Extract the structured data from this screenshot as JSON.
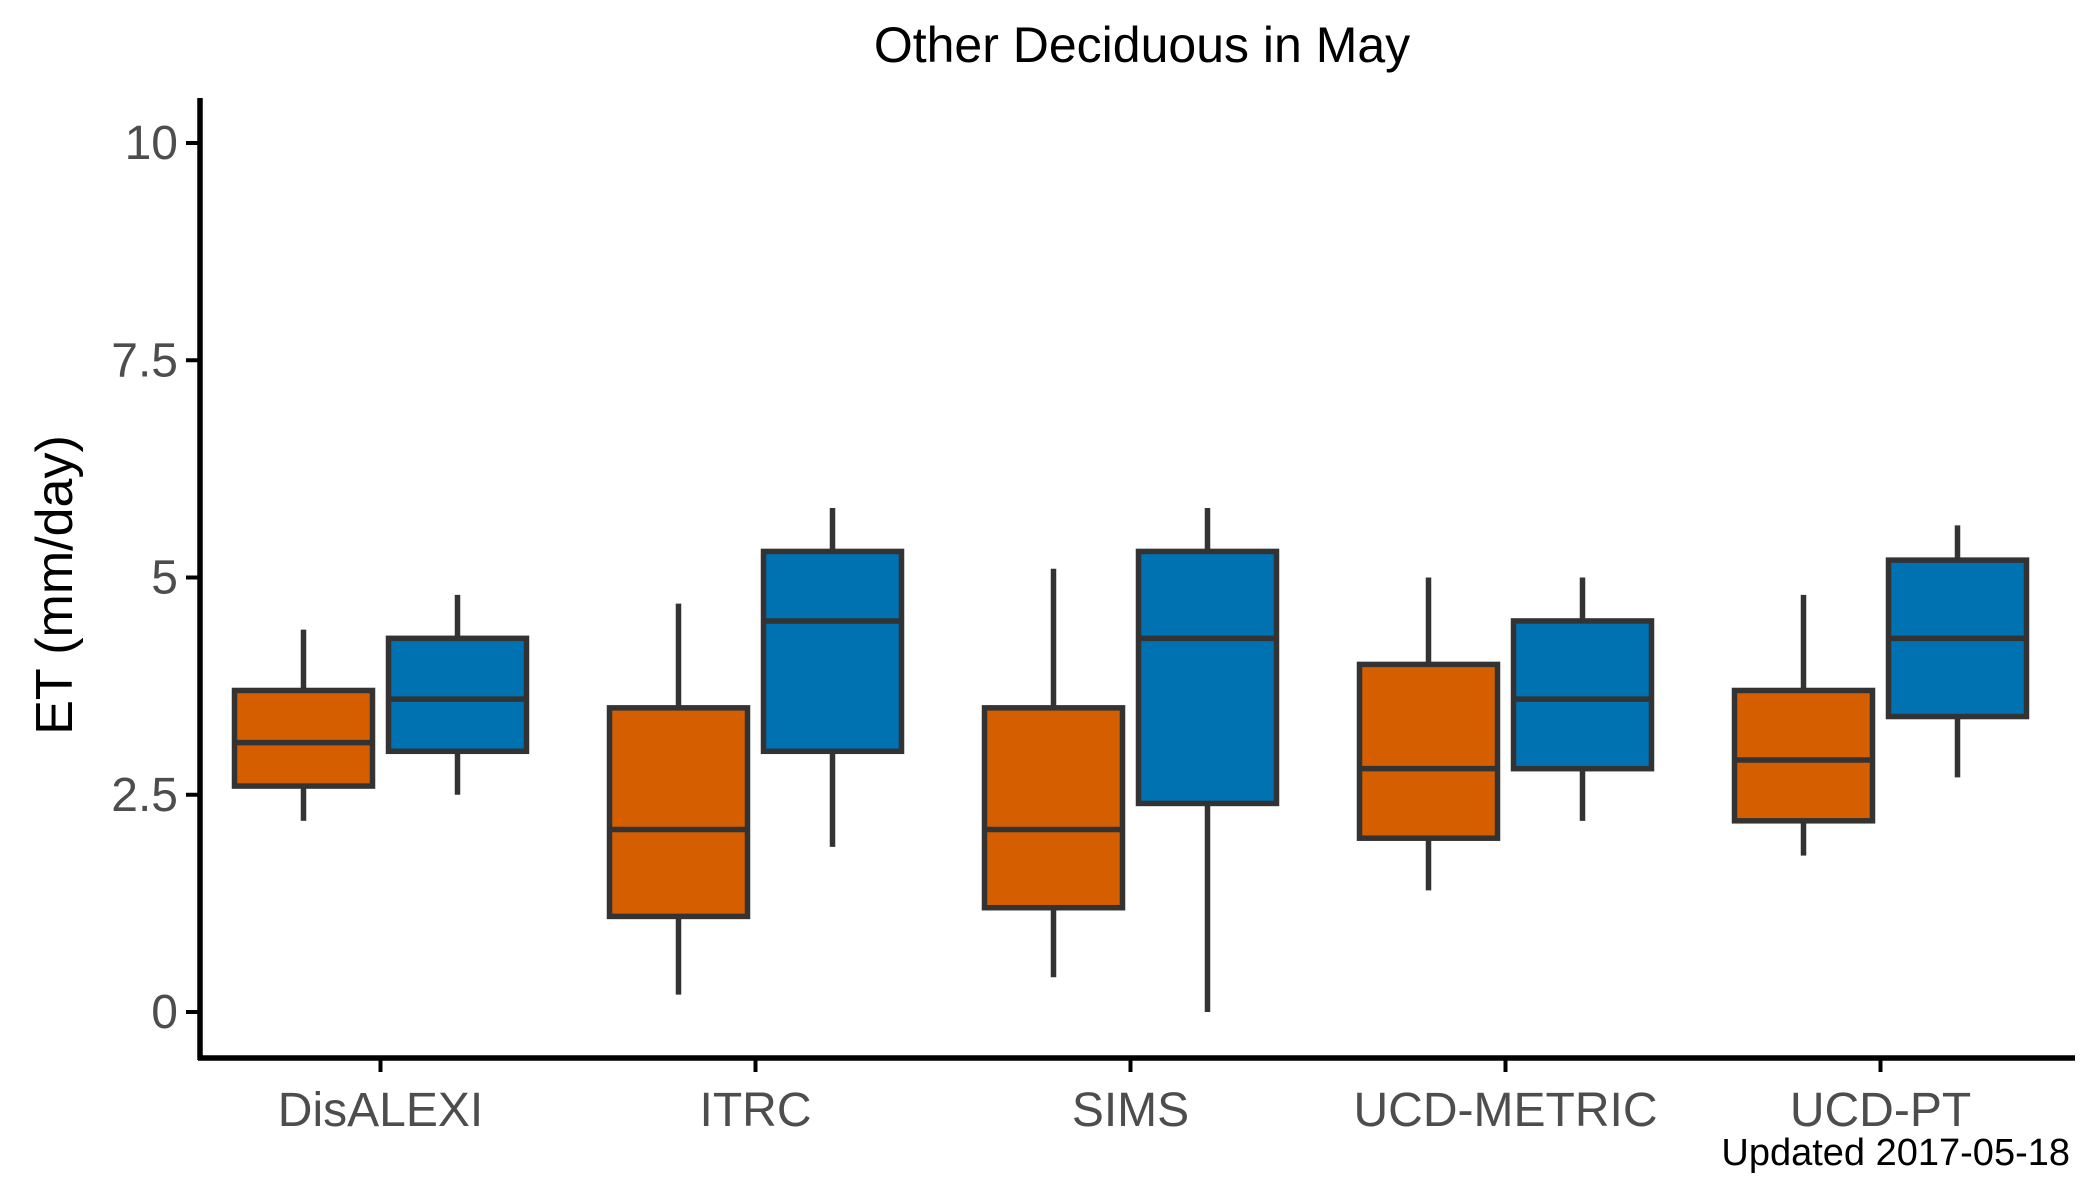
{
  "chart_data": {
    "type": "boxplot",
    "title": "Other Deciduous in May",
    "ylabel": "ET (mm/day)",
    "xlabel": "",
    "ylim": [
      -0.5,
      10.5
    ],
    "yticks": [
      0,
      2.5,
      5,
      7.5,
      10
    ],
    "ytick_labels": [
      "0",
      "2.5",
      "5",
      "7.5",
      "10"
    ],
    "categories": [
      "DisALEXI",
      "ITRC",
      "SIMS",
      "UCD-METRIC",
      "UCD-PT"
    ],
    "grid": false,
    "legend": "none",
    "series": [
      {
        "color": "#D55E00",
        "boxes": [
          {
            "min": 2.2,
            "q1": 2.6,
            "median": 3.1,
            "q3": 3.7,
            "max": 4.4
          },
          {
            "min": 0.2,
            "q1": 1.1,
            "median": 2.1,
            "q3": 3.5,
            "max": 4.7
          },
          {
            "min": 0.4,
            "q1": 1.2,
            "median": 2.1,
            "q3": 3.5,
            "max": 5.1
          },
          {
            "min": 1.4,
            "q1": 2.0,
            "median": 2.8,
            "q3": 4.0,
            "max": 5.0
          },
          {
            "min": 1.8,
            "q1": 2.2,
            "median": 2.9,
            "q3": 3.7,
            "max": 4.8
          }
        ]
      },
      {
        "color": "#0072B2",
        "boxes": [
          {
            "min": 2.5,
            "q1": 3.0,
            "median": 3.6,
            "q3": 4.3,
            "max": 4.8
          },
          {
            "min": 1.9,
            "q1": 3.0,
            "median": 4.5,
            "q3": 5.3,
            "max": 5.8
          },
          {
            "min": 0.0,
            "q1": 2.4,
            "median": 4.3,
            "q3": 5.3,
            "max": 5.8
          },
          {
            "min": 2.2,
            "q1": 2.8,
            "median": 3.6,
            "q3": 4.5,
            "max": 5.0
          },
          {
            "min": 2.7,
            "q1": 3.4,
            "median": 4.3,
            "q3": 5.2,
            "max": 5.6
          }
        ]
      }
    ],
    "caption": "Updated  2017-05-18"
  }
}
